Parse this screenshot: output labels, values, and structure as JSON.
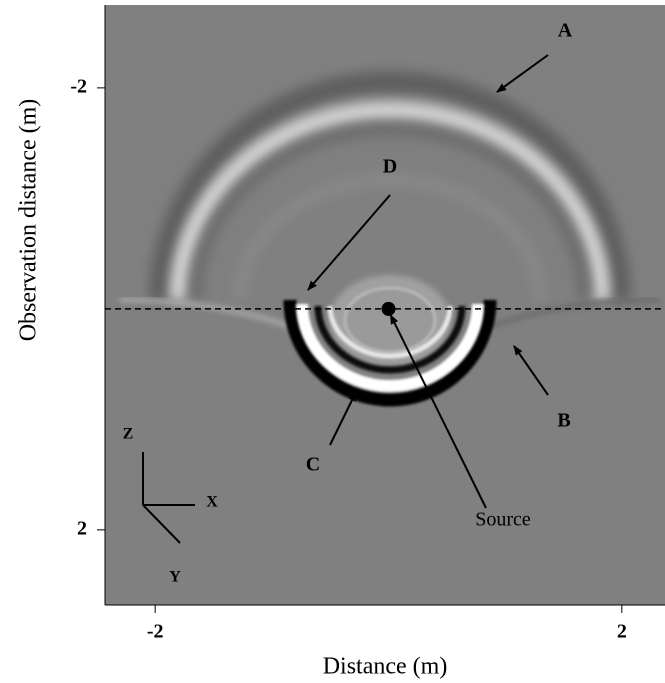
{
  "chart_data": {
    "type": "image",
    "x_label": "Distance (m)",
    "y_label": "Observation distance (m)",
    "xlim": [
      -2.43,
      2.37
    ],
    "ylim": [
      2.68,
      -2.75
    ],
    "xticks": [
      -2,
      2
    ],
    "yticks": [
      -2,
      2
    ],
    "interface_y": 0,
    "source": {
      "label": "Source",
      "x": 0,
      "y": 0
    },
    "annotations": [
      "A",
      "B",
      "C",
      "D"
    ],
    "coordinate_axes": [
      "Z",
      "X",
      "Y"
    ]
  }
}
